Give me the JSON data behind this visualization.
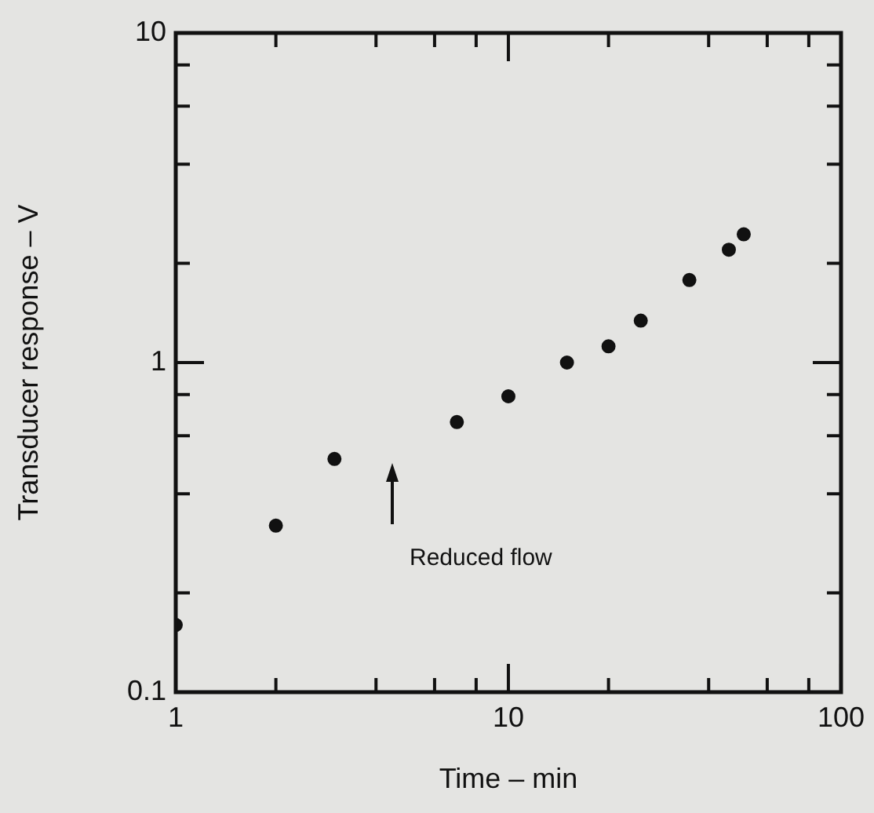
{
  "chart_data": {
    "type": "scatter",
    "xlabel": "Time – min",
    "ylabel": "Transducer response – V",
    "log": "xy",
    "grid": false,
    "legend": false,
    "marker": "circle",
    "xlim": [
      1,
      100
    ],
    "ylim": [
      0.1,
      10
    ],
    "xticks": [
      1,
      {
        "value": 2,
        "label": null
      },
      {
        "value": 4,
        "label": null
      },
      {
        "value": 6,
        "label": null
      },
      {
        "value": 8,
        "label": null
      },
      10,
      {
        "value": 20,
        "label": null
      },
      {
        "value": 40,
        "label": null
      },
      {
        "value": 60,
        "label": null
      },
      {
        "value": 80,
        "label": null
      },
      100
    ],
    "yticks": [
      0.1,
      {
        "value": 0.2,
        "label": null
      },
      {
        "value": 0.4,
        "label": null
      },
      {
        "value": 0.6,
        "label": null
      },
      {
        "value": 0.8,
        "label": null
      },
      1,
      {
        "value": 2,
        "label": null
      },
      {
        "value": 4,
        "label": null
      },
      {
        "value": 6,
        "label": null
      },
      {
        "value": 8,
        "label": null
      },
      10
    ],
    "x": [
      1,
      2,
      3,
      7,
      10,
      15,
      20,
      25,
      35,
      46,
      51
    ],
    "series": [
      {
        "color": "#111111",
        "values": [
          0.16,
          0.32,
          0.51,
          0.66,
          0.79,
          1.0,
          1.12,
          1.34,
          1.78,
          2.2,
          2.45
        ]
      }
    ],
    "annotations": [
      "Reduced flow"
    ]
  }
}
